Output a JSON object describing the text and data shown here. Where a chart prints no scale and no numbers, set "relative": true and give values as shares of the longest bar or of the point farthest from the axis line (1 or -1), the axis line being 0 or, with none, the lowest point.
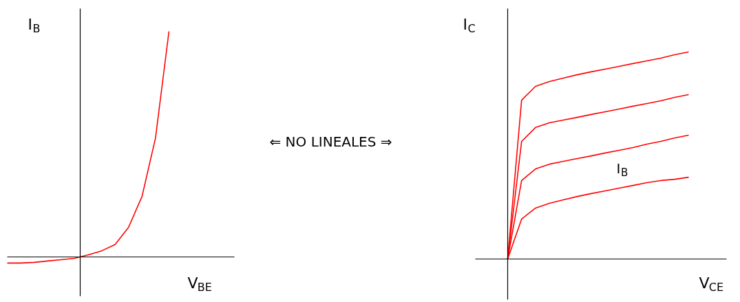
{
  "chart_data": [
    {
      "type": "line",
      "relative": true,
      "xlabel": "V$_{BE}$",
      "ylabel": "I$_{B}$",
      "categories": [
        null,
        null,
        null,
        null,
        null,
        null,
        null,
        null,
        null,
        null,
        null,
        null,
        null
      ],
      "series": [
        {
          "color": "#ff0000",
          "values": [
            -0.027,
            -0.027,
            -0.024,
            -0.018,
            -0.012,
            -0.006,
            0.009,
            0.027,
            0.055,
            0.131,
            0.268,
            0.527,
            1
          ]
        }
      ],
      "annotations": [
        "⇐ NO LINEALES ⇒"
      ],
      "grid": false,
      "marker": "none",
      "line_style": "solid"
    },
    {
      "type": "line",
      "relative": true,
      "xlabel": "V$_{CE}$",
      "ylabel": "I$_{C}$",
      "categories": [
        null,
        null,
        null,
        null,
        null,
        null,
        null,
        null,
        null,
        null,
        null,
        null,
        null,
        null
      ],
      "series": [
        {
          "color": "#ff0000",
          "values": [
            0,
            0.767,
            0.834,
            0.857,
            0.874,
            0.89,
            0.904,
            0.917,
            0.93,
            0.944,
            0.957,
            0.97,
            0.987,
            1
          ]
        },
        {
          "color": "#ff0000",
          "values": [
            0,
            0.568,
            0.635,
            0.658,
            0.671,
            0.684,
            0.698,
            0.711,
            0.724,
            0.738,
            0.751,
            0.764,
            0.781,
            0.794
          ]
        },
        {
          "color": "#ff0000",
          "values": [
            0,
            0.379,
            0.435,
            0.458,
            0.472,
            0.485,
            0.498,
            0.512,
            0.525,
            0.538,
            0.555,
            0.568,
            0.585,
            0.598
          ]
        },
        {
          "color": "#ff0000",
          "values": [
            0,
            0.193,
            0.246,
            0.269,
            0.286,
            0.302,
            0.316,
            0.329,
            0.342,
            0.355,
            0.369,
            0.379,
            0.385,
            0.395
          ]
        }
      ],
      "annotations": [
        "I$_{B}$"
      ],
      "grid": false,
      "marker": "none",
      "line_style": "solid"
    }
  ]
}
